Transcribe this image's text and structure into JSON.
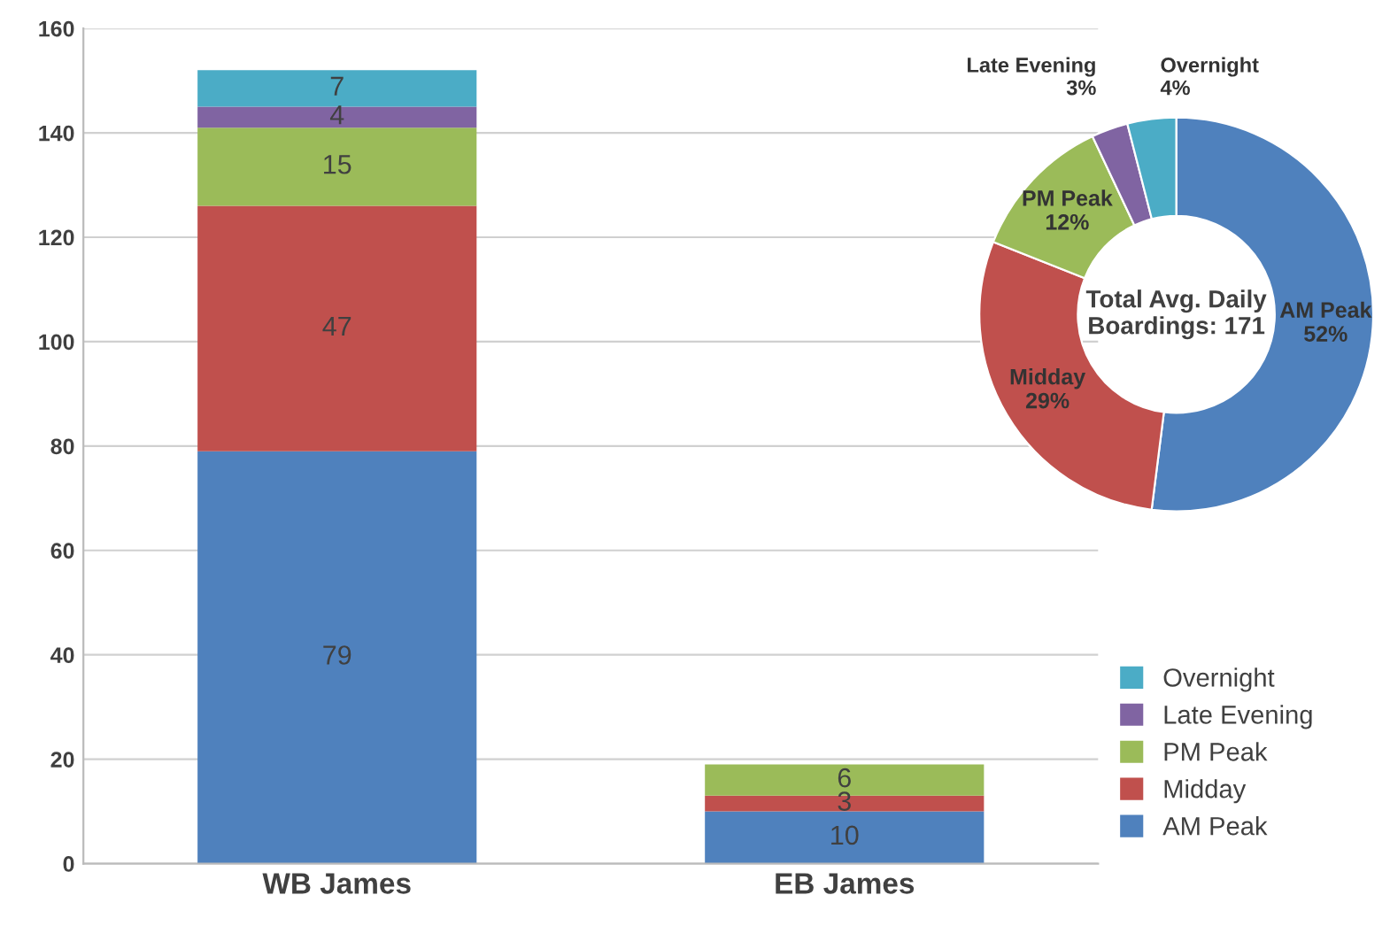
{
  "chart_data": [
    {
      "type": "bar",
      "stacked": true,
      "categories": [
        "WB James",
        "EB James"
      ],
      "series": [
        {
          "name": "AM Peak",
          "color": "#4f81bd",
          "values": [
            79,
            10
          ]
        },
        {
          "name": "Midday",
          "color": "#c0504d",
          "values": [
            47,
            3
          ]
        },
        {
          "name": "PM Peak",
          "color": "#9bbb59",
          "values": [
            15,
            6
          ]
        },
        {
          "name": "Late Evening",
          "color": "#8064a2",
          "values": [
            4,
            null
          ]
        },
        {
          "name": "Overnight",
          "color": "#4bacc6",
          "values": [
            7,
            null
          ]
        }
      ],
      "ylim": [
        0,
        160
      ],
      "yticks": [
        0,
        20,
        40,
        60,
        80,
        100,
        120,
        140,
        160
      ],
      "grid": "y",
      "legend": "bottom right",
      "data_labels": true
    },
    {
      "type": "donut",
      "categories": [
        "AM Peak",
        "Midday",
        "PM Peak",
        "Late Evening",
        "Overnight"
      ],
      "values": [
        52,
        29,
        12,
        3,
        4
      ],
      "colors": [
        "#4f81bd",
        "#c0504d",
        "#9bbb59",
        "#8064a2",
        "#4bacc6"
      ],
      "value_labels": [
        "52%",
        "29%",
        "12%",
        "3%",
        "4%"
      ],
      "annotations": [
        "Total Avg. Daily\nBoardings: 171"
      ]
    }
  ]
}
